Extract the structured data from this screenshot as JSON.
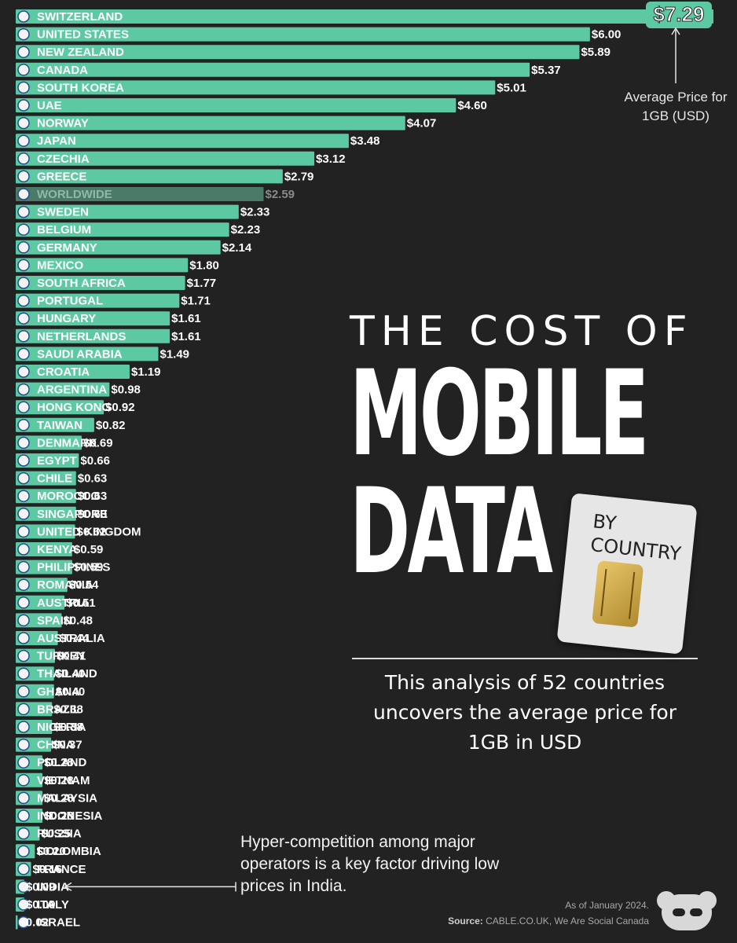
{
  "chart_data": {
    "type": "bar",
    "orientation": "horizontal",
    "categories": [
      "SWITZERLAND",
      "UNITED STATES",
      "NEW ZEALAND",
      "CANADA",
      "SOUTH KOREA",
      "UAE",
      "NORWAY",
      "JAPAN",
      "CZECHIA",
      "GREECE",
      "WORLDWIDE",
      "SWEDEN",
      "BELGIUM",
      "GERMANY",
      "MEXICO",
      "SOUTH AFRICA",
      "PORTUGAL",
      "HUNGARY",
      "NETHERLANDS",
      "SAUDI ARABIA",
      "CROATIA",
      "ARGENTINA",
      "HONG KONG",
      "TAIWAN",
      "DENMARK",
      "EGYPT",
      "CHILE",
      "MOROCCO",
      "SINGAPORE",
      "UNITED KINGDOM",
      "KENYA",
      "PHILIPPINES",
      "ROMANIA",
      "AUSTRIA",
      "SPAIN",
      "AUSTRALIA",
      "TURKEY",
      "THAILAND",
      "GHANA",
      "BRAZIL",
      "NIGERIA",
      "CHINA",
      "POLAND",
      "VIETNAM",
      "MALAYSIA",
      "INDONESIA",
      "RUSSIA",
      "COLOMBIA",
      "FRANCE",
      "INDIA",
      "ITALY",
      "ISRAEL"
    ],
    "values": [
      7.29,
      6.0,
      5.89,
      5.37,
      5.01,
      4.6,
      4.07,
      3.48,
      3.12,
      2.79,
      2.59,
      2.33,
      2.23,
      2.14,
      1.8,
      1.77,
      1.71,
      1.61,
      1.61,
      1.49,
      1.19,
      0.98,
      0.92,
      0.82,
      0.69,
      0.66,
      0.63,
      0.63,
      0.63,
      0.62,
      0.59,
      0.59,
      0.54,
      0.51,
      0.48,
      0.44,
      0.41,
      0.4,
      0.4,
      0.38,
      0.38,
      0.37,
      0.28,
      0.28,
      0.28,
      0.28,
      0.25,
      0.2,
      0.16,
      0.09,
      0.09,
      0.02
    ],
    "value_labels": [
      "$7.29",
      "$6.00",
      "$5.89",
      "$5.37",
      "$5.01",
      "$4.60",
      "$4.07",
      "$3.48",
      "$3.12",
      "$2.79",
      "$2.59",
      "$2.33",
      "$2.23",
      "$2.14",
      "$1.80",
      "$1.77",
      "$1.71",
      "$1.61",
      "$1.61",
      "$1.49",
      "$1.19",
      "$0.98",
      "$0.92",
      "$0.82",
      "$0.69",
      "$0.66",
      "$0.63",
      "$0.63",
      "$0.63",
      "$0.62",
      "$0.59",
      "$0.59",
      "$0.54",
      "$0.51",
      "$0.48",
      "$0.44",
      "$0.41",
      "$0.40",
      "$0.40",
      "$0.38",
      "$0.38",
      "$0.37",
      "$0.28",
      "$0.28",
      "$0.28",
      "$0.28",
      "$0.25",
      "$0.20",
      "$0.16",
      "$0.09",
      "$0.09",
      "$0.02"
    ],
    "highlighted_category": "WORLDWIDE",
    "xlim": [
      0,
      7.29
    ],
    "grid": false,
    "bar_color": "#5cc9a2",
    "highlight_bar_color": "#4c7a69",
    "title": "THE COST OF MOBILE DATA",
    "xlabel": "",
    "ylabel": ""
  },
  "title": {
    "line1": "THE COST OF",
    "line2": "MOBILE",
    "line3": "DATA"
  },
  "sim_card": {
    "label_line1": "BY",
    "label_line2": "COUNTRY"
  },
  "subtitle": "This analysis of 52 countries uncovers the average price for 1GB in USD",
  "avg_price_label": "Average Price for 1GB (USD)",
  "annotation": "Hyper-competition among major operators is a key factor driving low prices in India.",
  "footer": {
    "date": "As of January 2024.",
    "source_key": "Source:",
    "source_value": "CABLE.CO.UK, We Are Social Canada"
  },
  "colors": {
    "background": "#222222",
    "bar": "#5cc9a2",
    "highlight_bar": "#4c7a69",
    "text": "#ffffff"
  }
}
